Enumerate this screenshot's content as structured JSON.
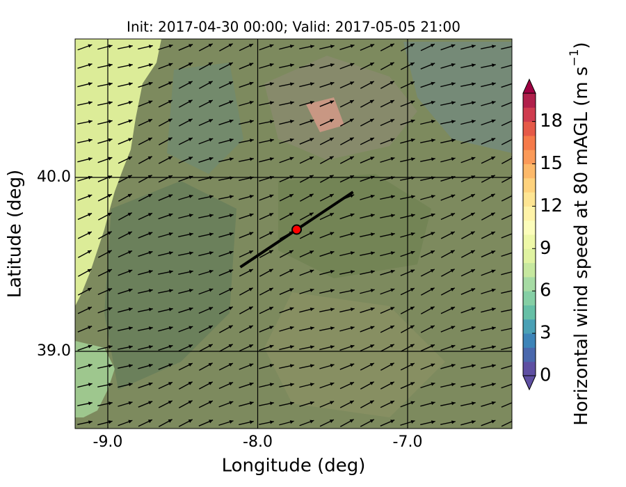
{
  "title": "Init: 2017-04-30 00:00; Valid: 2017-05-05 21:00",
  "map": {
    "xlabel": "Longitude (deg)",
    "ylabel": "Latitude (deg)",
    "xlim": [
      -9.218,
      -6.304
    ],
    "ylim": [
      38.556,
      40.796
    ],
    "xticks": [
      {
        "value": -9,
        "label": "-9.0"
      },
      {
        "value": -8,
        "label": "-8.0"
      },
      {
        "value": -7,
        "label": "-7.0"
      }
    ],
    "yticks": [
      {
        "value": 39,
        "label": "39.0"
      },
      {
        "value": 40,
        "label": "40.0"
      }
    ],
    "point": {
      "lon": -7.74,
      "lat": 39.7,
      "color": "#ff0000"
    },
    "line": {
      "lon": [
        -8.116,
        -7.364
      ],
      "lat": [
        39.484,
        39.916
      ],
      "color": "#000000"
    }
  },
  "colorbar": {
    "label": "Horizontal wind speed at 80 mAGL (m s",
    "label_exponent": "−1",
    "label_end": ")",
    "lim": [
      0,
      20
    ],
    "ticks": [
      0,
      3,
      6,
      9,
      12,
      15,
      18
    ],
    "colors": [
      "#5e4fa2",
      "#4a68ad",
      "#3d84b8",
      "#4aa0b5",
      "#66bfa6",
      "#85cfa5",
      "#a6dba4",
      "#c6e89f",
      "#e0f3a1",
      "#eef8a8",
      "#fcfdbb",
      "#fff3a8",
      "#fee593",
      "#fed27d",
      "#fdb96a",
      "#fb9a59",
      "#f57a4a",
      "#e55948",
      "#cf3c4f",
      "#b0204b"
    ],
    "under_color": "#5e4fa2",
    "over_color": "#9e0142"
  }
}
